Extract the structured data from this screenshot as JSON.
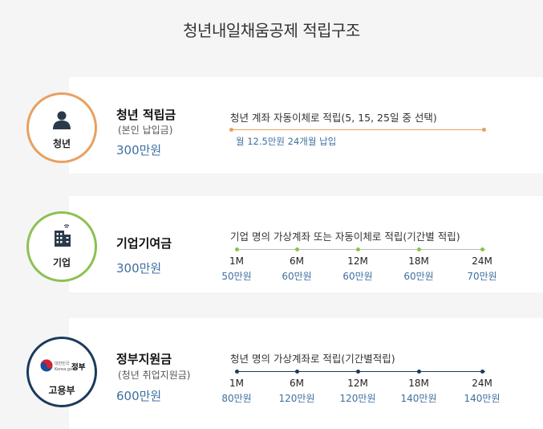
{
  "title": "청년내일채움공제 적립구조",
  "sections": {
    "youth": {
      "badge": "청년",
      "heading": "청년 적립금",
      "sub": "(본인 납입금)",
      "amount": "300만원",
      "desc": "청년 계좌 자동이체로 적립(5, 15, 25일 중 선택)",
      "note": "월 12.5만원 24개월 납입",
      "color": "#e8a060"
    },
    "company": {
      "badge": "기업",
      "heading": "기업기여금",
      "amount": "300만원",
      "desc": "기업 명의 가상계좌 또는 자동이체로 적립(기간별 적립)",
      "color": "#8cc152",
      "ticks": [
        {
          "month": "1M",
          "value": "50만원"
        },
        {
          "month": "6M",
          "value": "60만원"
        },
        {
          "month": "12M",
          "value": "60만원"
        },
        {
          "month": "18M",
          "value": "60만원"
        },
        {
          "month": "24M",
          "value": "70만원"
        }
      ]
    },
    "gov": {
      "badge": "고용부",
      "emblem_main": "정부",
      "emblem_small": "대한민국",
      "emblem_tiny": "Korea.go.kr",
      "heading": "정부지원금",
      "sub": "(청년 취업지원금)",
      "amount": "600만원",
      "desc": "청년 명의 가상계좌로 적립(기간별적립)",
      "color": "#1b3a5c",
      "ticks": [
        {
          "month": "1M",
          "value": "80만원"
        },
        {
          "month": "6M",
          "value": "120만원"
        },
        {
          "month": "12M",
          "value": "120만원"
        },
        {
          "month": "18M",
          "value": "140만원"
        },
        {
          "month": "24M",
          "value": "140만원"
        }
      ]
    }
  }
}
